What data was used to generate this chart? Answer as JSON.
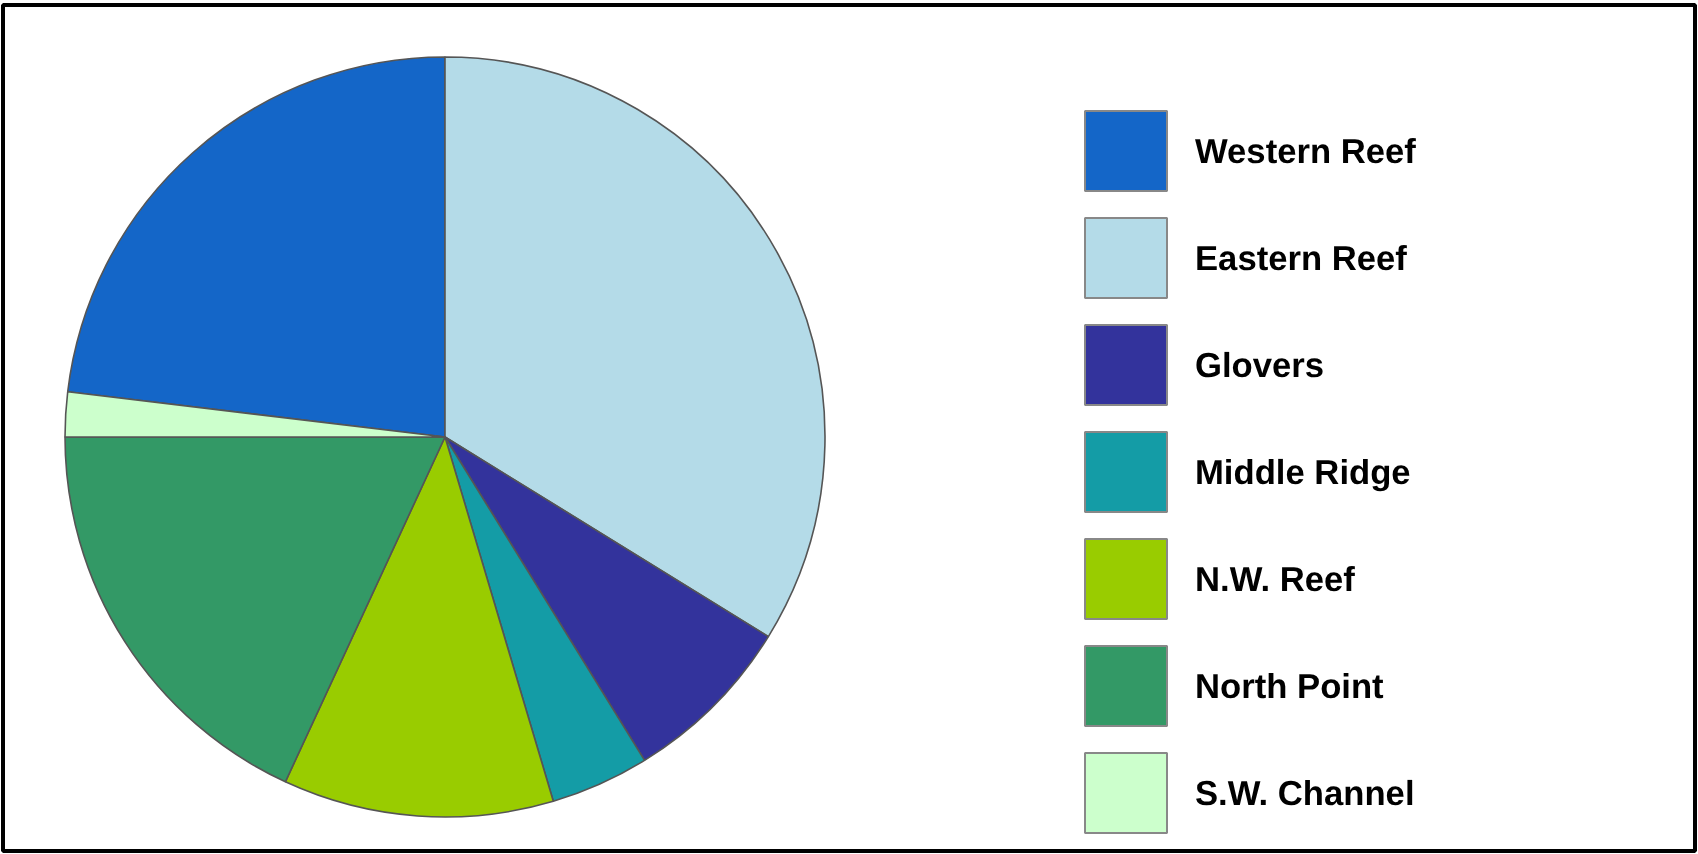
{
  "chart_data": {
    "type": "pie",
    "categories": [
      "Western Reef",
      "Eastern Reef",
      "Glovers",
      "Middle Ridge",
      "N.W. Reef",
      "North Point",
      "S.W. Channel"
    ],
    "values": [
      23.1,
      33.8,
      7.4,
      4.2,
      11.5,
      18.1,
      1.9
    ],
    "colors": [
      "#1466c8",
      "#b4dbe8",
      "#33339c",
      "#149ca6",
      "#99cc00",
      "#339966",
      "#ccffcc"
    ],
    "legend": "right"
  }
}
